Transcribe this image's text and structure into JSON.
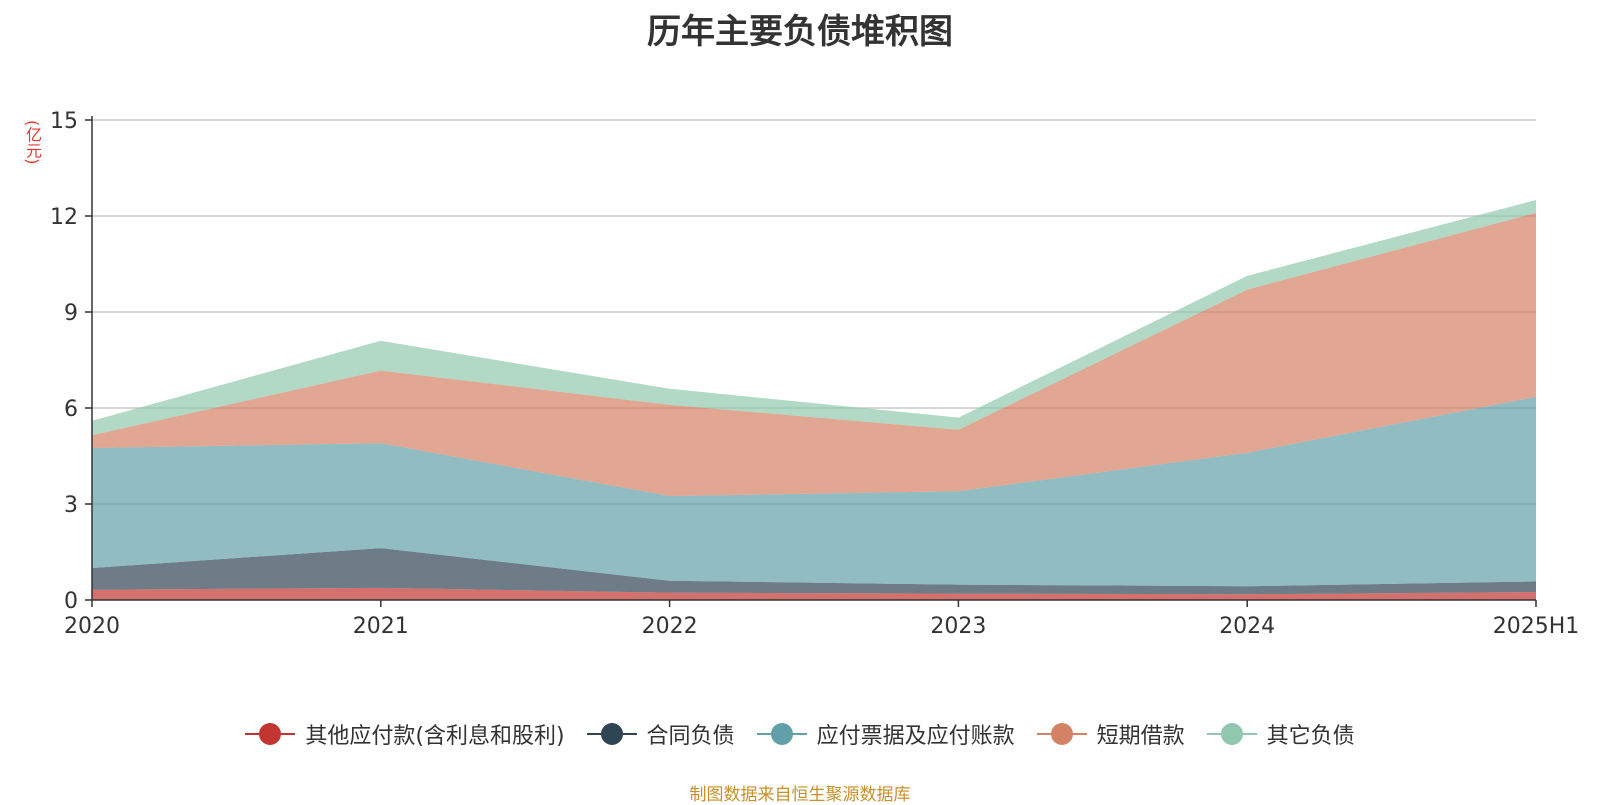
{
  "chart_data": {
    "type": "area",
    "stacked": true,
    "title": "历年主要负债堆积图",
    "unit_label": "(亿元)",
    "categories": [
      "2020",
      "2021",
      "2022",
      "2023",
      "2024",
      "2025H1"
    ],
    "y_ticks": [
      "0",
      "3",
      "6",
      "9",
      "12",
      "15"
    ],
    "ylim": [
      0,
      15
    ],
    "grid": true,
    "legend_position": "bottom",
    "series": [
      {
        "name": "其他应付款(含利息和股利)",
        "color": "#c23531",
        "values": [
          0.32,
          0.38,
          0.23,
          0.2,
          0.18,
          0.25
        ]
      },
      {
        "name": "合同负债",
        "color": "#2f4554",
        "values": [
          0.68,
          1.24,
          0.37,
          0.28,
          0.25,
          0.33
        ]
      },
      {
        "name": "应付票据及应付账款",
        "color": "#61a0a8",
        "values": [
          3.75,
          3.28,
          2.65,
          2.92,
          4.17,
          5.77
        ]
      },
      {
        "name": "短期借款",
        "color": "#d48265",
        "values": [
          0.4,
          2.27,
          2.85,
          1.92,
          5.1,
          5.75
        ]
      },
      {
        "name": "其它负债",
        "color": "#91c7ae",
        "values": [
          0.45,
          0.93,
          0.5,
          0.38,
          0.43,
          0.4
        ]
      }
    ]
  },
  "source": "制图数据来自恒生聚源数据库"
}
